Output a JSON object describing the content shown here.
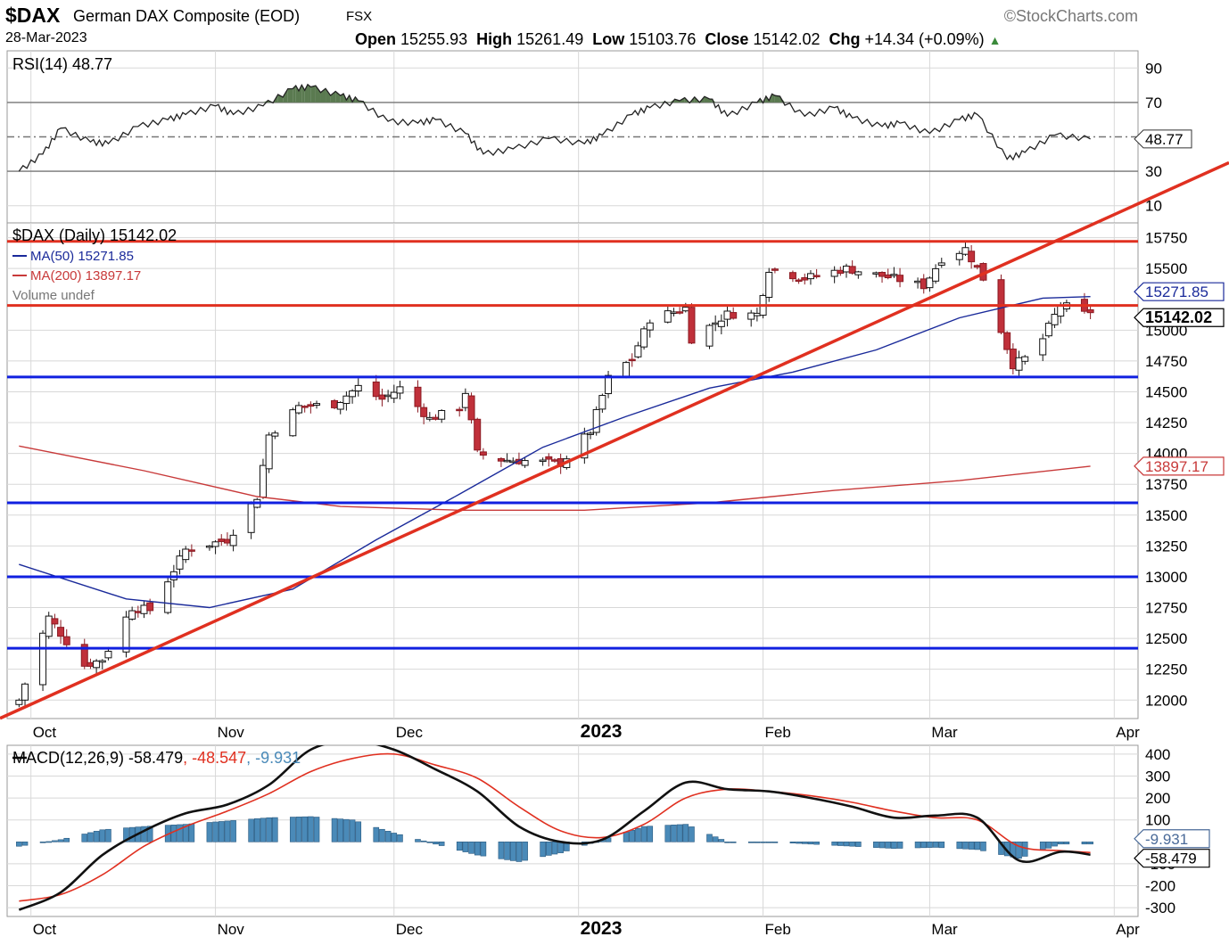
{
  "header": {
    "symbol": "$DAX",
    "name": "German DAX Composite (EOD)",
    "exchange": "FSX",
    "watermark": "©StockCharts.com",
    "date": "28-Mar-2023",
    "open_label": "Open",
    "open": "15255.93",
    "high_label": "High",
    "high": "15261.49",
    "low_label": "Low",
    "low": "15103.76",
    "close_label": "Close",
    "close": "15142.02",
    "chg_label": "Chg",
    "chg": "+14.34 (+0.09%)"
  },
  "colors": {
    "up_candle": "#ffffff",
    "down_candle": "#c0303a",
    "ma50": "#1a2a9a",
    "ma200": "#c83a3a",
    "trend_red": "#e03020",
    "support_blue": "#1020e0",
    "rsi_fill": "#5a7a50",
    "macd_line": "#111111",
    "signal_line": "#e03020",
    "histogram": "#4a8ab8",
    "grid": "#d8d8d8"
  },
  "chart_data": [
    {
      "type": "line",
      "panel": "RSI",
      "legend": "RSI(14) 48.77",
      "last_value_label": "48.77",
      "ylim": [
        0,
        100
      ],
      "yticks": [
        90,
        70,
        30,
        10
      ],
      "reference_lines": [
        70,
        50,
        30
      ],
      "x": [
        "2022-09-29",
        "2022-10-03",
        "2022-10-06",
        "2022-10-11",
        "2022-10-14",
        "2022-10-19",
        "2022-10-24",
        "2022-10-27",
        "2022-11-01",
        "2022-11-04",
        "2022-11-09",
        "2022-11-14",
        "2022-11-17",
        "2022-11-22",
        "2022-11-25",
        "2022-11-30",
        "2022-12-05",
        "2022-12-08",
        "2022-12-13",
        "2022-12-16",
        "2022-12-21",
        "2022-12-27",
        "2023-01-02",
        "2023-01-05",
        "2023-01-10",
        "2023-01-13",
        "2023-01-18",
        "2023-01-23",
        "2023-01-26",
        "2023-01-31",
        "2023-02-03",
        "2023-02-08",
        "2023-02-13",
        "2023-02-16",
        "2023-02-21",
        "2023-02-24",
        "2023-03-01",
        "2023-03-06",
        "2023-03-09",
        "2023-03-14",
        "2023-03-17",
        "2023-03-22",
        "2023-03-28"
      ],
      "values": [
        30,
        40,
        55,
        47,
        46,
        56,
        60,
        63,
        68,
        63,
        68,
        78,
        79,
        74,
        71,
        59,
        58,
        60,
        52,
        40,
        43,
        49,
        46,
        51,
        63,
        67,
        71,
        72,
        62,
        70,
        74,
        62,
        67,
        61,
        56,
        58,
        52,
        60,
        63,
        37,
        41,
        51,
        48.77
      ]
    },
    {
      "type": "candlestick",
      "panel": "Price",
      "legend": "$DAX (Daily) 15142.02",
      "last_close_label": "15142.02",
      "ylim": [
        11850,
        15870
      ],
      "yticks": [
        15750,
        15500,
        15000,
        14750,
        14500,
        14250,
        14000,
        13750,
        13500,
        13250,
        13000,
        12750,
        12500,
        12250,
        12000
      ],
      "x_ticks": [
        "Oct",
        "Nov",
        "Dec",
        "2023",
        "Feb",
        "Mar",
        "Apr"
      ],
      "anchors": [
        [
          "2022-09-29",
          12000
        ],
        [
          "2022-10-04",
          12670
        ],
        [
          "2022-10-10",
          12280
        ],
        [
          "2022-10-13",
          12330
        ],
        [
          "2022-10-18",
          12750
        ],
        [
          "2022-10-21",
          12730
        ],
        [
          "2022-10-27",
          13220
        ],
        [
          "2022-11-03",
          13300
        ],
        [
          "2022-11-08",
          13650
        ],
        [
          "2022-11-10",
          14150
        ],
        [
          "2022-11-15",
          14380
        ],
        [
          "2022-11-21",
          14400
        ],
        [
          "2022-11-25",
          14540
        ],
        [
          "2022-11-29",
          14440
        ],
        [
          "2022-12-02",
          14530
        ],
        [
          "2022-12-07",
          14280
        ],
        [
          "2022-12-12",
          14370
        ],
        [
          "2022-12-13",
          14500
        ],
        [
          "2022-12-15",
          14000
        ],
        [
          "2022-12-19",
          13950
        ],
        [
          "2022-12-23",
          13940
        ],
        [
          "2022-12-29",
          13920
        ],
        [
          "2023-01-03",
          14180
        ],
        [
          "2023-01-06",
          14610
        ],
        [
          "2023-01-10",
          14770
        ],
        [
          "2023-01-13",
          15090
        ],
        [
          "2023-01-19",
          15180
        ],
        [
          "2023-01-20",
          14930
        ],
        [
          "2023-01-26",
          15130
        ],
        [
          "2023-01-31",
          15130
        ],
        [
          "2023-02-02",
          15500
        ],
        [
          "2023-02-08",
          15420
        ],
        [
          "2023-02-15",
          15500
        ],
        [
          "2023-02-23",
          15420
        ],
        [
          "2023-02-28",
          15360
        ],
        [
          "2023-03-03",
          15580
        ],
        [
          "2023-03-07",
          15660
        ],
        [
          "2023-03-10",
          15420
        ],
        [
          "2023-03-13",
          15000
        ],
        [
          "2023-03-15",
          14720
        ],
        [
          "2023-03-17",
          14770
        ],
        [
          "2023-03-20",
          14930
        ],
        [
          "2023-03-23",
          15210
        ],
        [
          "2023-03-27",
          15130
        ],
        [
          "2023-03-28",
          15142.02
        ]
      ],
      "series": [
        {
          "name": "MA(50) 15271.85",
          "last_label": "15271.85",
          "x": [
            "2022-09-29",
            "2022-10-17",
            "2022-10-31",
            "2022-11-14",
            "2022-11-28",
            "2022-12-12",
            "2022-12-26",
            "2023-01-09",
            "2023-01-23",
            "2023-02-06",
            "2023-02-20",
            "2023-03-06",
            "2023-03-20",
            "2023-03-28"
          ],
          "values": [
            13100,
            12820,
            12750,
            12900,
            13300,
            13670,
            14050,
            14300,
            14530,
            14660,
            14840,
            15100,
            15260,
            15271.85
          ]
        },
        {
          "name": "MA(200) 13897.17",
          "last_label": "13897.17",
          "x": [
            "2022-09-29",
            "2022-10-20",
            "2022-11-08",
            "2022-11-22",
            "2022-12-12",
            "2023-01-02",
            "2023-01-23",
            "2023-02-13",
            "2023-03-06",
            "2023-03-28"
          ],
          "values": [
            14060,
            13860,
            13650,
            13570,
            13540,
            13540,
            13600,
            13700,
            13780,
            13897.17
          ]
        }
      ],
      "volume_legend": "Volume undef",
      "horizontal_lines": [
        15720,
        15200,
        14620,
        13600,
        13000,
        12420
      ],
      "trendlines": [
        {
          "x1": "2022-09-28",
          "y1": 11900,
          "x2": "2023-03-28",
          "y2": 15850
        }
      ]
    },
    {
      "type": "line",
      "panel": "MACD",
      "legend": "MACD(12,26,9) -58.479, -48.547, -9.931",
      "legend_parts": [
        "MACD(12,26,9) -58.479",
        "-48.547",
        "-9.931"
      ],
      "last_labels": [
        "-9.931",
        "-58.479"
      ],
      "ylim": [
        -340,
        440
      ],
      "yticks": [
        400,
        300,
        200,
        100,
        -100,
        -200,
        -300
      ],
      "x_ticks": [
        "Oct",
        "Nov",
        "Dec",
        "2023",
        "Feb",
        "Mar",
        "Apr"
      ],
      "x": [
        "2022-09-29",
        "2022-10-06",
        "2022-10-13",
        "2022-10-20",
        "2022-10-27",
        "2022-11-03",
        "2022-11-10",
        "2022-11-17",
        "2022-11-24",
        "2022-12-01",
        "2022-12-08",
        "2022-12-15",
        "2022-12-22",
        "2022-12-29",
        "2023-01-05",
        "2023-01-12",
        "2023-01-19",
        "2023-01-26",
        "2023-02-02",
        "2023-02-09",
        "2023-02-16",
        "2023-02-23",
        "2023-03-02",
        "2023-03-09",
        "2023-03-16",
        "2023-03-23",
        "2023-03-28"
      ],
      "series": [
        {
          "name": "MACD",
          "values": [
            -310,
            -230,
            -60,
            50,
            130,
            170,
            260,
            420,
            460,
            420,
            330,
            230,
            70,
            0,
            10,
            140,
            270,
            240,
            230,
            200,
            160,
            110,
            120,
            110,
            -85,
            -45,
            -58.479
          ]
        },
        {
          "name": "Signal",
          "values": [
            -270,
            -240,
            -150,
            -20,
            70,
            140,
            220,
            320,
            380,
            400,
            350,
            290,
            160,
            50,
            20,
            80,
            200,
            240,
            230,
            210,
            180,
            140,
            110,
            100,
            -20,
            -40,
            -48.547
          ]
        },
        {
          "name": "Histogram",
          "values": [
            -20,
            10,
            55,
            70,
            80,
            95,
            110,
            115,
            100,
            40,
            -10,
            -60,
            -90,
            -50,
            10,
            70,
            80,
            0,
            0,
            -10,
            -20,
            -30,
            -25,
            -35,
            -75,
            -10,
            -9.931
          ]
        }
      ]
    }
  ]
}
